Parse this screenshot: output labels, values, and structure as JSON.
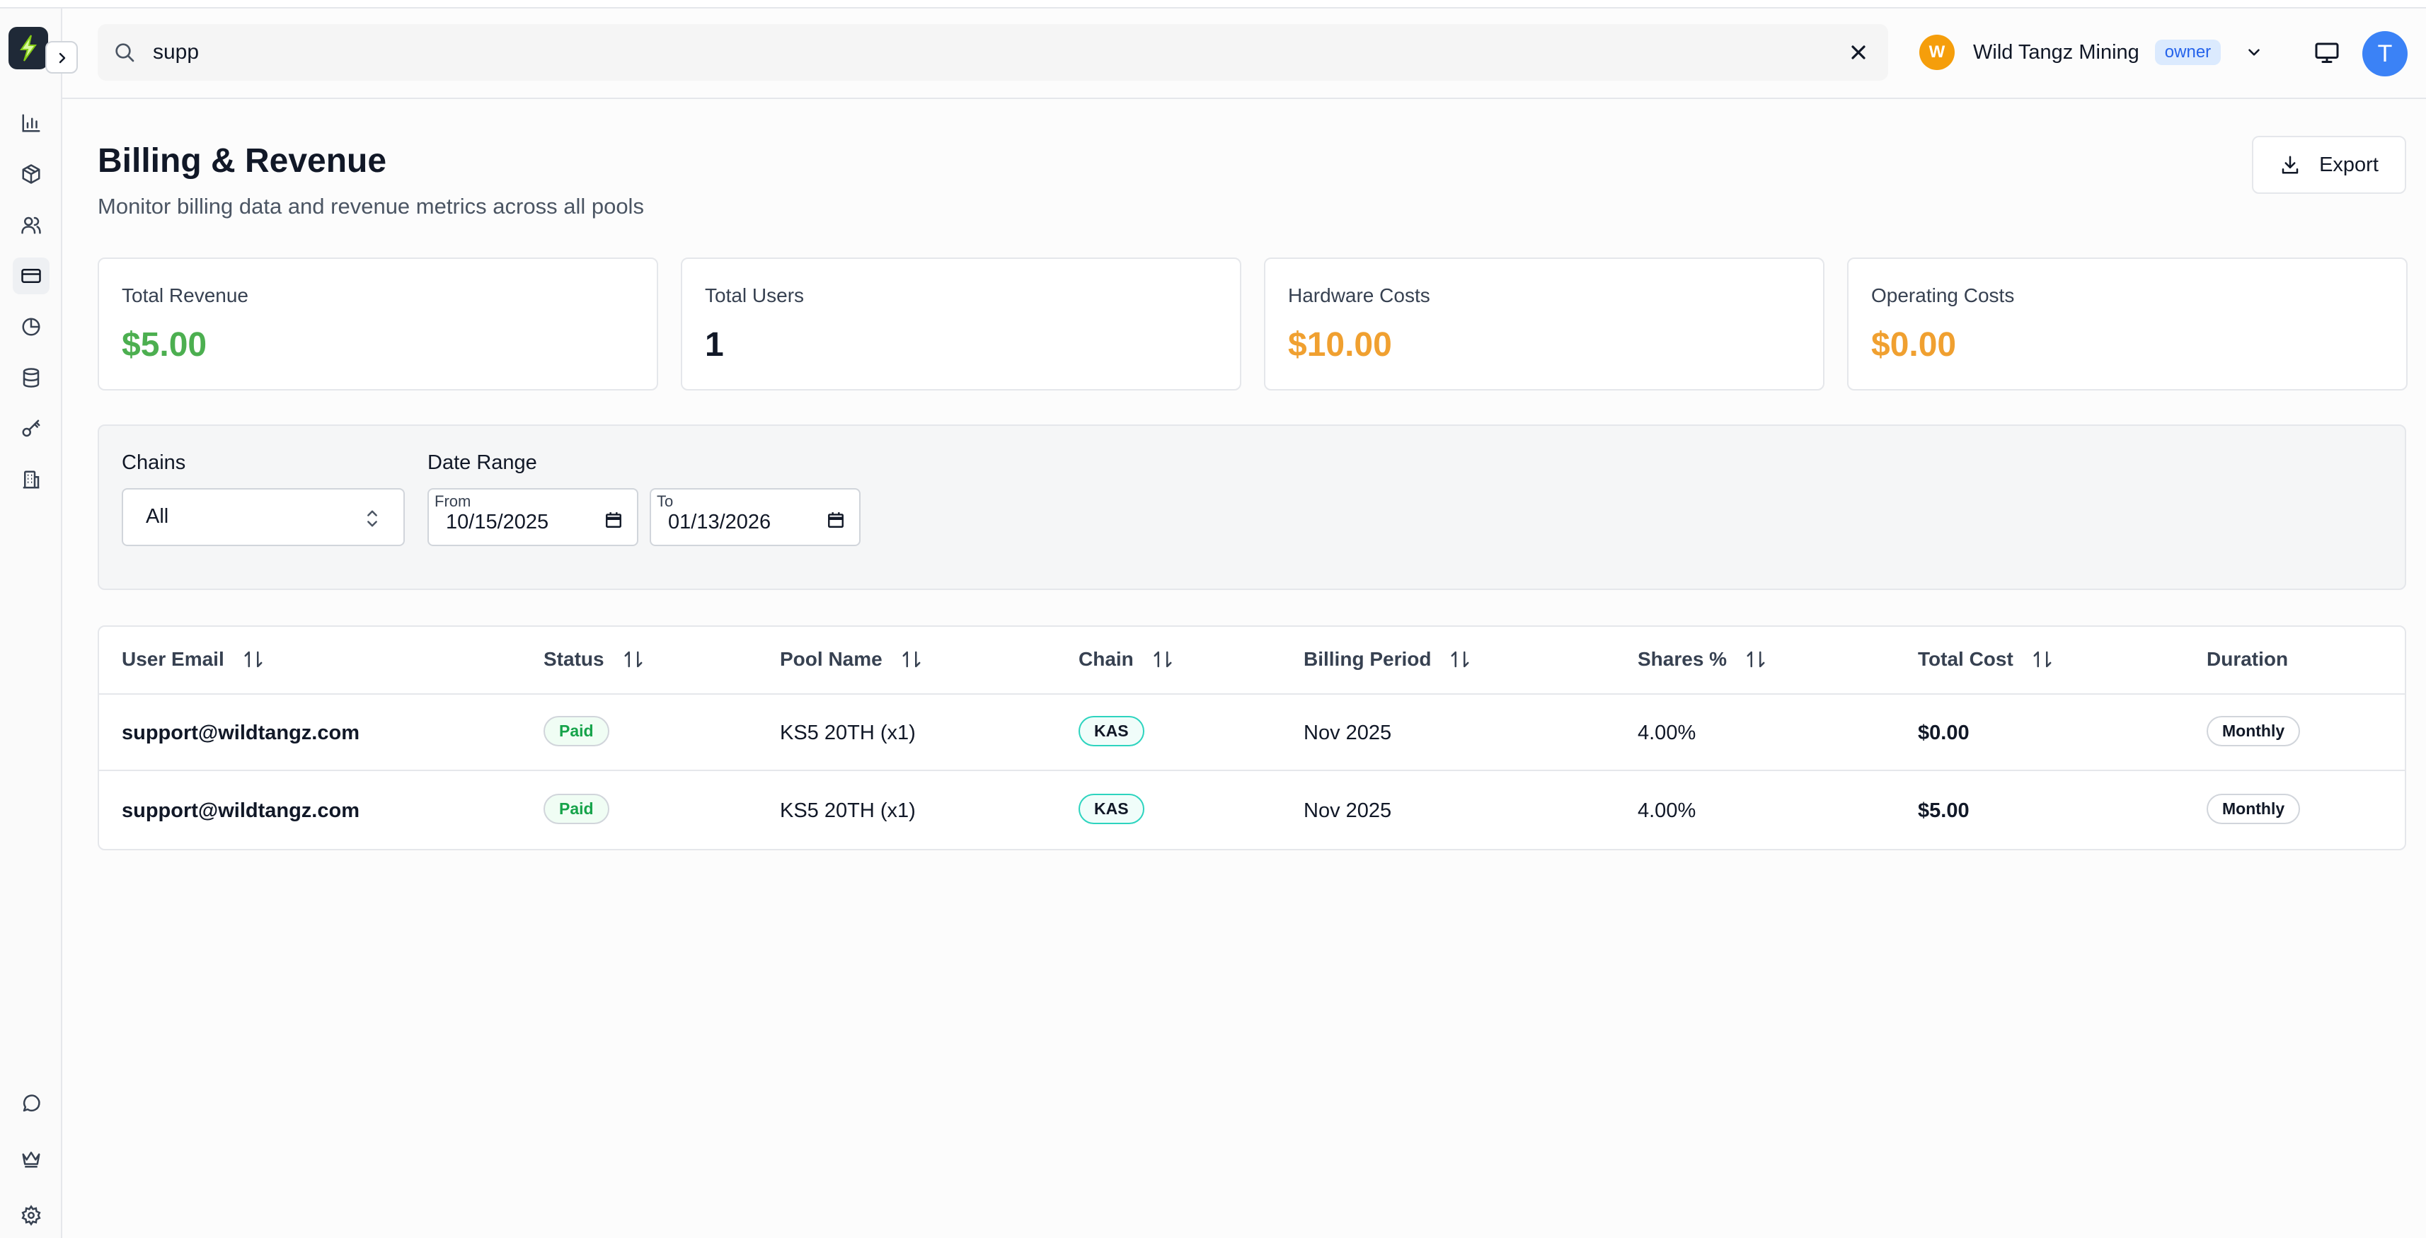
{
  "header": {
    "search_value": "supp",
    "org_initial": "W",
    "org_name": "Wild Tangz Mining",
    "org_role": "owner",
    "user_initial": "T"
  },
  "page": {
    "title": "Billing & Revenue",
    "subtitle": "Monitor billing data and revenue metrics across all pools",
    "export_label": "Export"
  },
  "stats": [
    {
      "label": "Total Revenue",
      "value": "$5.00",
      "color": "#4caf50"
    },
    {
      "label": "Total Users",
      "value": "1",
      "color": "#111827"
    },
    {
      "label": "Hardware Costs",
      "value": "$10.00",
      "color": "#f0a030"
    },
    {
      "label": "Operating Costs",
      "value": "$0.00",
      "color": "#f0a030"
    }
  ],
  "filters": {
    "chains_label": "Chains",
    "chains_value": "All",
    "date_range_label": "Date Range",
    "from_caption": "From",
    "from_value": "10/15/2025",
    "to_caption": "To",
    "to_value": "01/13/2026"
  },
  "table": {
    "columns": [
      "User Email",
      "Status",
      "Pool Name",
      "Chain",
      "Billing Period",
      "Shares %",
      "Total Cost",
      "Duration"
    ],
    "rows": [
      {
        "email": "support@wildtangz.com",
        "status": "Paid",
        "pool": "KS5 20TH (x1)",
        "chain": "KAS",
        "period": "Nov 2025",
        "shares": "4.00%",
        "cost": "$0.00",
        "duration": "Monthly"
      },
      {
        "email": "support@wildtangz.com",
        "status": "Paid",
        "pool": "KS5 20TH (x1)",
        "chain": "KAS",
        "period": "Nov 2025",
        "shares": "4.00%",
        "cost": "$5.00",
        "duration": "Monthly"
      }
    ]
  },
  "sidebar": {
    "icons": [
      "bar-chart-icon",
      "box-icon",
      "users-icon",
      "credit-card-icon",
      "pie-chart-icon",
      "database-icon",
      "key-icon",
      "building-icon",
      "chat-icon",
      "crown-icon",
      "gear-icon"
    ],
    "active": "credit-card-icon"
  }
}
